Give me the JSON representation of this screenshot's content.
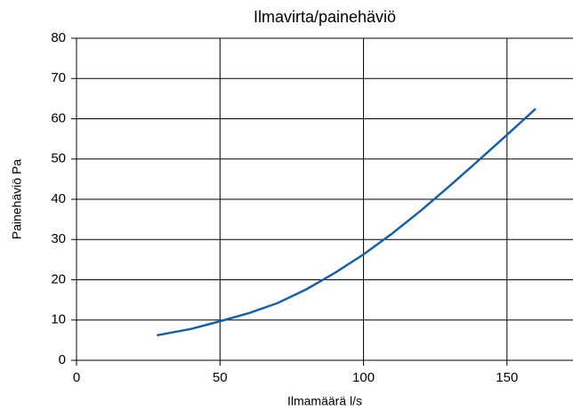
{
  "chart_data": {
    "type": "line",
    "title": "Ilmavirta/painehäviö",
    "x_label": "Ilmamäärä l/s",
    "y_label": "Painehäviö Pa",
    "x": [
      28,
      40,
      50,
      60,
      70,
      80,
      90,
      100,
      110,
      120,
      130,
      140,
      150,
      160
    ],
    "values": [
      6.2,
      7.8,
      9.7,
      11.7,
      14.2,
      17.6,
      21.7,
      26.3,
      31.5,
      37.2,
      43.3,
      49.6,
      56.0,
      62.5
    ],
    "color": "#1a5fa3",
    "xlim": [
      0,
      173
    ],
    "xticks": [
      0,
      50,
      100,
      150
    ],
    "ylim": [
      0,
      80
    ],
    "yticks": [
      0,
      10,
      20,
      30,
      40,
      50,
      60,
      70,
      80
    ],
    "grid": true
  }
}
